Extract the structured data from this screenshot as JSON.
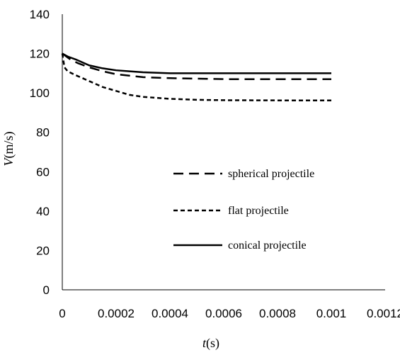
{
  "chart_data": {
    "type": "line",
    "title": "",
    "xlabel": {
      "italic": "t",
      "rest": "(s)"
    },
    "ylabel": {
      "italic": "V",
      "rest": "(m/s)"
    },
    "xlim": [
      0,
      0.0012
    ],
    "ylim": [
      0,
      140
    ],
    "x_ticks": [
      "0",
      "0.0002",
      "0.0004",
      "0.0006",
      "0.0008",
      "0.001",
      "0.0012"
    ],
    "x_tick_values": [
      0,
      0.0002,
      0.0004,
      0.0006,
      0.0008,
      0.001,
      0.0012
    ],
    "y_ticks": [
      "0",
      "20",
      "40",
      "60",
      "80",
      "100",
      "120",
      "140"
    ],
    "y_tick_values": [
      0,
      20,
      40,
      60,
      80,
      100,
      120,
      140
    ],
    "grid": false,
    "legend_position": "center-right",
    "series": [
      {
        "name": "spherical projectile",
        "style": "long-dash",
        "color": "#000000",
        "x": [
          0,
          1e-05,
          3e-05,
          6e-05,
          0.0001,
          0.00015,
          0.0002,
          0.0003,
          0.0004,
          0.0006,
          0.0008,
          0.001
        ],
        "y": [
          120,
          119,
          117,
          115,
          113,
          111,
          109.5,
          108,
          107.5,
          107,
          107,
          107
        ]
      },
      {
        "name": "flat projectile",
        "style": "short-dash",
        "color": "#000000",
        "x": [
          0,
          8e-06,
          2e-05,
          5e-05,
          0.0001,
          0.00015,
          0.0002,
          0.00025,
          0.0003,
          0.0004,
          0.0005,
          0.0006,
          0.0008,
          0.001
        ],
        "y": [
          120,
          113,
          111,
          109,
          106,
          103,
          101,
          99,
          98,
          97,
          96.5,
          96.3,
          96.2,
          96.2
        ]
      },
      {
        "name": "conical projectile",
        "style": "solid",
        "color": "#000000",
        "x": [
          0,
          2e-05,
          5e-05,
          0.0001,
          0.00015,
          0.0002,
          0.00025,
          0.0003,
          0.0004,
          0.0005,
          0.0006,
          0.0008,
          0.001
        ],
        "y": [
          120,
          118.5,
          117,
          114,
          112.5,
          111.5,
          111,
          110.5,
          110,
          110,
          110,
          110,
          110
        ]
      }
    ]
  }
}
